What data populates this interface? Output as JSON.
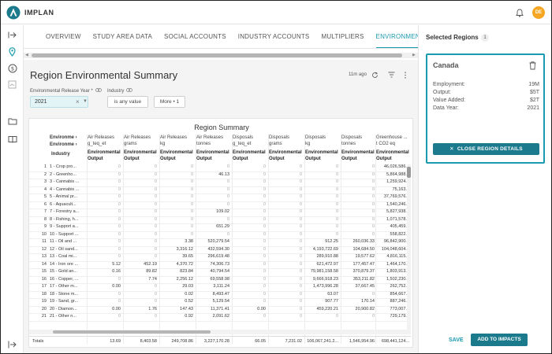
{
  "app": {
    "brand": "IMPLAN",
    "avatar_initials": "DE"
  },
  "tabs": [
    "OVERVIEW",
    "STUDY AREA DATA",
    "SOCIAL ACCOUNTS",
    "INDUSTRY ACCOUNTS",
    "MULTIPLIERS",
    "ENVIRONMENTAL"
  ],
  "active_tab": "ENVIRONMENTAL",
  "main": {
    "title": "Region Environmental Summary",
    "updated": "11m ago",
    "filters": {
      "year_label": "Environmental Release Year *",
      "year_value": "2021",
      "industry_label": "Industry",
      "industry_value": "is any value",
      "more": "More • 1"
    }
  },
  "table": {
    "title": "Region Summary",
    "header_fields": [
      "Environme ›",
      "Environme ›"
    ],
    "industry_label": "Industry",
    "columns": [
      {
        "l1": "Air Releases",
        "l2": "g_teq_et"
      },
      {
        "l1": "Air Releases",
        "l2": "grams"
      },
      {
        "l1": "Air Releases",
        "l2": "kg"
      },
      {
        "l1": "Air Releases",
        "l2": "tonnes"
      },
      {
        "l1": "Disposals",
        "l2": "g_teq_et"
      },
      {
        "l1": "Disposals",
        "l2": "grams"
      },
      {
        "l1": "Disposals",
        "l2": "kg"
      },
      {
        "l1": "Disposals",
        "l2": "tonnes"
      },
      {
        "l1": "Greenhouse ...",
        "l2": "t CO2 eq"
      }
    ],
    "sub_header": "Environmental Output",
    "rows": [
      {
        "n": "1",
        "name": "1 - Crop pro...",
        "v": [
          "0",
          "0",
          "0",
          "0",
          "0",
          "0",
          "0",
          "0",
          "46,026,586.9"
        ]
      },
      {
        "n": "2",
        "name": "2 - Greenho...",
        "v": [
          "0",
          "0",
          "0",
          "46.13",
          "0",
          "0",
          "0",
          "0",
          "5,864,988.3"
        ]
      },
      {
        "n": "3",
        "name": "3 - Cannabis ...",
        "v": [
          "0",
          "0",
          "0",
          "0",
          "0",
          "0",
          "0",
          "0",
          "1,259,924.8"
        ]
      },
      {
        "n": "4",
        "name": "4 - Cannabis ...",
        "v": [
          "0",
          "0",
          "0",
          "0",
          "0",
          "0",
          "0",
          "0",
          "75,163.6"
        ]
      },
      {
        "n": "5",
        "name": "5 - Animal pr...",
        "v": [
          "0",
          "0",
          "0",
          "0",
          "0",
          "0",
          "0",
          "0",
          "37,769,576.4"
        ]
      },
      {
        "n": "6",
        "name": "6 - Aquacult...",
        "v": [
          "0",
          "0",
          "0",
          "0",
          "0",
          "0",
          "0",
          "0",
          "1,540,246.2"
        ]
      },
      {
        "n": "7",
        "name": "7 - Forestry a...",
        "v": [
          "0",
          "0",
          "0",
          "109.02",
          "0",
          "0",
          "0",
          "0",
          "5,827,938.5"
        ]
      },
      {
        "n": "8",
        "name": "8 - Fishing, h...",
        "v": [
          "0",
          "0",
          "0",
          "0",
          "0",
          "0",
          "0",
          "0",
          "1,071,578.2"
        ]
      },
      {
        "n": "9",
        "name": "9 - Support a...",
        "v": [
          "0",
          "0",
          "0",
          "651.29",
          "0",
          "0",
          "0",
          "0",
          "405,459.4"
        ]
      },
      {
        "n": "10",
        "name": "10 - Support ...",
        "v": [
          "0",
          "0",
          "0",
          "0",
          "0",
          "0",
          "0",
          "0",
          "558,822.7"
        ]
      },
      {
        "n": "11",
        "name": "11 - Oil and ...",
        "v": [
          "0",
          "0",
          "3.38",
          "520,279.54",
          "0",
          "0",
          "912.25",
          "260,036.33",
          "96,842,900.7"
        ]
      },
      {
        "n": "12",
        "name": "12 - Oil sand...",
        "v": [
          "0",
          "0",
          "3,316.12",
          "432,594.30",
          "0",
          "0",
          "4,193,722.69",
          "104,684.50",
          "104,048,604..."
        ]
      },
      {
        "n": "13",
        "name": "13 - Coal mi...",
        "v": [
          "0",
          "0",
          "39.65",
          "296,619.48",
          "0",
          "0",
          "289,910.88",
          "19,577.62",
          "4,816,115.0"
        ]
      },
      {
        "n": "14",
        "name": "14 - Iron ore ...",
        "v": [
          "5.12",
          "452.19",
          "4,370.72",
          "74,306.73",
          "0",
          "0",
          "621,472.97",
          "177,457.47",
          "1,464,170.0"
        ]
      },
      {
        "n": "15",
        "name": "15 - Gold an...",
        "v": [
          "0.16",
          "89.82",
          "823.84",
          "40,794.54",
          "0",
          "0",
          "79,981,158.58",
          "370,879.37",
          "1,803,913.4"
        ]
      },
      {
        "n": "16",
        "name": "16 - Copper, ...",
        "v": [
          "0",
          "7.74",
          "2,256.12",
          "69,558.98",
          "0",
          "0",
          "9,666,918.23",
          "353,211.82",
          "1,502,230.4"
        ]
      },
      {
        "n": "17",
        "name": "17 - Other m...",
        "v": [
          "0.00",
          "0",
          "29.03",
          "3,111.24",
          "0",
          "0",
          "1,473,996.28",
          "37,667.45",
          "262,752.2"
        ]
      },
      {
        "n": "18",
        "name": "18 - Stone m...",
        "v": [
          "0",
          "0",
          "0.02",
          "8,493.47",
          "0",
          "0",
          "63.07",
          "0",
          "854,667.4"
        ]
      },
      {
        "n": "19",
        "name": "19 - Sand, gr...",
        "v": [
          "0",
          "0",
          "0.52",
          "5,129.54",
          "0",
          "0",
          "907.77",
          "170.14",
          "887,246.5"
        ]
      },
      {
        "n": "20",
        "name": "20 - Diamon...",
        "v": [
          "0.00",
          "1.76",
          "147.43",
          "11,371.41",
          "0.00",
          "0",
          "459,220.21",
          "20,900.82",
          "773,007.2"
        ]
      },
      {
        "n": "21",
        "name": "21 - Other n...",
        "v": [
          "0",
          "0",
          "0.92",
          "2,091.62",
          "0",
          "0",
          "0",
          "0",
          "729,179.8"
        ]
      }
    ],
    "totals_label": "Totals",
    "totals": [
      "13.69",
      "8,403.58",
      "249,708.86",
      "3,227,170.28",
      "66.05",
      "7,231.02",
      "106,067,241.2...",
      "1,546,954.96",
      "698,441,124..."
    ]
  },
  "panel": {
    "title": "Selected Regions",
    "count": "1",
    "region": "Canada",
    "stats": [
      {
        "label": "Employment:",
        "value": "19M"
      },
      {
        "label": "Output:",
        "value": "$5T"
      },
      {
        "label": "Value Added:",
        "value": "$2T"
      },
      {
        "label": "Data Year:",
        "value": "2021"
      }
    ],
    "close_label": "CLOSE REGION DETAILS",
    "save_label": "SAVE",
    "add_label": "ADD TO IMPACTS"
  },
  "colors": {
    "accent": "#1a9ab0",
    "button": "#1b7a8c",
    "avatar": "#f5a623",
    "logo": "#1b7a8c"
  }
}
